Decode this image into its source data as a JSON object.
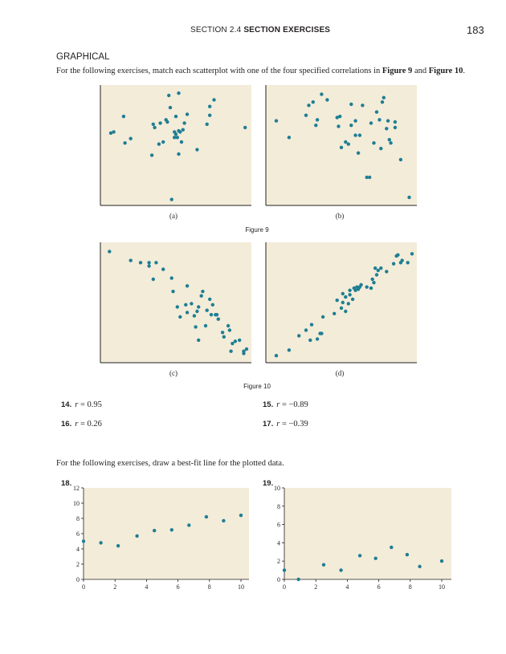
{
  "header": {
    "section_prefix": "SECTION 2.4",
    "section_title": "SECTION EXERCISES",
    "page_number": "183"
  },
  "section_heading": "GRAPHICAL",
  "instructions1": {
    "before": "For the following exercises, match each scatterplot with one of the four specified correlations in ",
    "fig9": "Figure 9",
    "and": " and ",
    "fig10": "Figure 10",
    "after": "."
  },
  "figure9": {
    "caption": "Figure 9",
    "panel_labels": [
      "(a)",
      "(b)"
    ]
  },
  "figure10": {
    "caption": "Figure 10",
    "panel_labels": [
      "(c)",
      "(d)"
    ]
  },
  "exercises_correlation": [
    {
      "num": "14.",
      "var": "r",
      "eq": " = 0.95"
    },
    {
      "num": "15.",
      "var": "r",
      "eq": " = −0.89"
    },
    {
      "num": "16.",
      "var": "r",
      "eq": " = 0.26"
    },
    {
      "num": "17.",
      "var": "r",
      "eq": " = −0.39"
    }
  ],
  "instructions2": "For the following exercises, draw a best-fit line for the plotted data.",
  "chart_data": [
    {
      "type": "scatter",
      "label": "(a)",
      "points": [
        [
          0.04,
          0.61
        ],
        [
          0.06,
          0.62
        ],
        [
          0.14,
          0.52
        ],
        [
          0.13,
          0.76
        ],
        [
          0.18,
          0.56
        ],
        [
          0.33,
          0.41
        ],
        [
          0.34,
          0.69
        ],
        [
          0.35,
          0.66
        ],
        [
          0.38,
          0.51
        ],
        [
          0.39,
          0.7
        ],
        [
          0.41,
          0.53
        ],
        [
          0.43,
          0.73
        ],
        [
          0.44,
          0.71
        ],
        [
          0.45,
          0.95
        ],
        [
          0.46,
          0.84
        ],
        [
          0.47,
          0.01
        ],
        [
          0.49,
          0.62
        ],
        [
          0.49,
          0.57
        ],
        [
          0.5,
          0.76
        ],
        [
          0.5,
          0.6
        ],
        [
          0.51,
          0.57
        ],
        [
          0.52,
          0.63
        ],
        [
          0.52,
          0.42
        ],
        [
          0.52,
          0.97
        ],
        [
          0.53,
          0.62
        ],
        [
          0.54,
          0.53
        ],
        [
          0.55,
          0.64
        ],
        [
          0.56,
          0.7
        ],
        [
          0.58,
          0.78
        ],
        [
          0.65,
          0.46
        ],
        [
          0.72,
          0.69
        ],
        [
          0.74,
          0.85
        ],
        [
          0.74,
          0.77
        ],
        [
          0.77,
          0.91
        ],
        [
          0.99,
          0.66
        ]
      ]
    },
    {
      "type": "scatter",
      "label": "(b)",
      "points": [
        [
          0.04,
          0.72
        ],
        [
          0.13,
          0.57
        ],
        [
          0.25,
          0.77
        ],
        [
          0.27,
          0.86
        ],
        [
          0.3,
          0.89
        ],
        [
          0.32,
          0.68
        ],
        [
          0.33,
          0.73
        ],
        [
          0.36,
          0.96
        ],
        [
          0.4,
          0.91
        ],
        [
          0.47,
          0.75
        ],
        [
          0.48,
          0.67
        ],
        [
          0.49,
          0.76
        ],
        [
          0.5,
          0.48
        ],
        [
          0.53,
          0.53
        ],
        [
          0.55,
          0.51
        ],
        [
          0.57,
          0.68
        ],
        [
          0.57,
          0.87
        ],
        [
          0.6,
          0.72
        ],
        [
          0.6,
          0.59
        ],
        [
          0.62,
          0.43
        ],
        [
          0.63,
          0.59
        ],
        [
          0.65,
          0.86
        ],
        [
          0.68,
          0.21
        ],
        [
          0.7,
          0.21
        ],
        [
          0.71,
          0.7
        ],
        [
          0.73,
          0.52
        ],
        [
          0.75,
          0.8
        ],
        [
          0.77,
          0.73
        ],
        [
          0.78,
          0.47
        ],
        [
          0.79,
          0.89
        ],
        [
          0.8,
          0.93
        ],
        [
          0.82,
          0.65
        ],
        [
          0.83,
          0.72
        ],
        [
          0.84,
          0.55
        ],
        [
          0.85,
          0.52
        ],
        [
          0.88,
          0.71
        ],
        [
          0.88,
          0.66
        ],
        [
          0.92,
          0.37
        ],
        [
          0.98,
          0.03
        ]
      ]
    },
    {
      "type": "scatter",
      "label": "(c)",
      "points": [
        [
          0.03,
          0.96
        ],
        [
          0.18,
          0.88
        ],
        [
          0.25,
          0.86
        ],
        [
          0.31,
          0.83
        ],
        [
          0.31,
          0.86
        ],
        [
          0.34,
          0.71
        ],
        [
          0.36,
          0.86
        ],
        [
          0.41,
          0.8
        ],
        [
          0.47,
          0.72
        ],
        [
          0.48,
          0.6
        ],
        [
          0.51,
          0.46
        ],
        [
          0.53,
          0.37
        ],
        [
          0.57,
          0.48
        ],
        [
          0.58,
          0.65
        ],
        [
          0.58,
          0.41
        ],
        [
          0.61,
          0.49
        ],
        [
          0.63,
          0.38
        ],
        [
          0.64,
          0.28
        ],
        [
          0.65,
          0.42
        ],
        [
          0.66,
          0.46
        ],
        [
          0.66,
          0.16
        ],
        [
          0.68,
          0.56
        ],
        [
          0.69,
          0.6
        ],
        [
          0.71,
          0.29
        ],
        [
          0.72,
          0.43
        ],
        [
          0.74,
          0.53
        ],
        [
          0.75,
          0.39
        ],
        [
          0.76,
          0.48
        ],
        [
          0.78,
          0.39
        ],
        [
          0.79,
          0.39
        ],
        [
          0.8,
          0.35
        ],
        [
          0.83,
          0.23
        ],
        [
          0.84,
          0.19
        ],
        [
          0.87,
          0.29
        ],
        [
          0.88,
          0.25
        ],
        [
          0.89,
          0.06
        ],
        [
          0.9,
          0.13
        ],
        [
          0.92,
          0.15
        ],
        [
          0.95,
          0.16
        ],
        [
          0.98,
          0.04
        ],
        [
          0.98,
          0.06
        ],
        [
          1.0,
          0.08
        ]
      ]
    },
    {
      "type": "scatter",
      "label": "(d)",
      "points": [
        [
          0.04,
          0.02
        ],
        [
          0.13,
          0.07
        ],
        [
          0.2,
          0.2
        ],
        [
          0.25,
          0.25
        ],
        [
          0.28,
          0.16
        ],
        [
          0.29,
          0.3
        ],
        [
          0.33,
          0.17
        ],
        [
          0.35,
          0.22
        ],
        [
          0.36,
          0.22
        ],
        [
          0.37,
          0.37
        ],
        [
          0.45,
          0.4
        ],
        [
          0.47,
          0.52
        ],
        [
          0.5,
          0.45
        ],
        [
          0.51,
          0.58
        ],
        [
          0.51,
          0.5
        ],
        [
          0.53,
          0.42
        ],
        [
          0.53,
          0.55
        ],
        [
          0.55,
          0.49
        ],
        [
          0.56,
          0.57
        ],
        [
          0.56,
          0.61
        ],
        [
          0.58,
          0.53
        ],
        [
          0.59,
          0.63
        ],
        [
          0.6,
          0.61
        ],
        [
          0.61,
          0.64
        ],
        [
          0.62,
          0.62
        ],
        [
          0.63,
          0.64
        ],
        [
          0.64,
          0.66
        ],
        [
          0.68,
          0.64
        ],
        [
          0.71,
          0.63
        ],
        [
          0.72,
          0.71
        ],
        [
          0.73,
          0.68
        ],
        [
          0.74,
          0.81
        ],
        [
          0.75,
          0.75
        ],
        [
          0.76,
          0.79
        ],
        [
          0.78,
          0.81
        ],
        [
          0.82,
          0.78
        ],
        [
          0.87,
          0.85
        ],
        [
          0.89,
          0.92
        ],
        [
          0.9,
          0.93
        ],
        [
          0.92,
          0.86
        ],
        [
          0.93,
          0.88
        ],
        [
          0.97,
          0.86
        ],
        [
          1.0,
          0.94
        ]
      ]
    },
    {
      "type": "scatter",
      "label": "18.",
      "xlim": [
        0,
        10
      ],
      "ylim": [
        0,
        12
      ],
      "xticks": [
        0,
        2,
        4,
        6,
        8,
        10
      ],
      "yticks": [
        0,
        2,
        4,
        6,
        8,
        10,
        12
      ],
      "points": [
        [
          0,
          5
        ],
        [
          1.1,
          4.8
        ],
        [
          2.2,
          4.4
        ],
        [
          3.4,
          5.7
        ],
        [
          4.5,
          6.4
        ],
        [
          5.6,
          6.5
        ],
        [
          6.7,
          7.1
        ],
        [
          7.8,
          8.2
        ],
        [
          8.9,
          7.7
        ],
        [
          10,
          8.4
        ]
      ]
    },
    {
      "type": "scatter",
      "label": "19.",
      "xlim": [
        0,
        10
      ],
      "ylim": [
        0,
        10
      ],
      "xticks": [
        0,
        2,
        4,
        6,
        8,
        10
      ],
      "yticks": [
        0,
        2,
        4,
        6,
        8,
        10
      ],
      "points": [
        [
          0,
          1
        ],
        [
          0.9,
          0
        ],
        [
          2.5,
          1.6
        ],
        [
          3.6,
          1
        ],
        [
          4.8,
          2.6
        ],
        [
          5.8,
          2.3
        ],
        [
          6.8,
          3.5
        ],
        [
          7.8,
          2.7
        ],
        [
          8.6,
          1.4
        ],
        [
          10,
          2
        ]
      ]
    }
  ],
  "colors": {
    "panel_bg": "#f3ecd9",
    "dot": "#1e7e93",
    "axis": "#231f20"
  }
}
